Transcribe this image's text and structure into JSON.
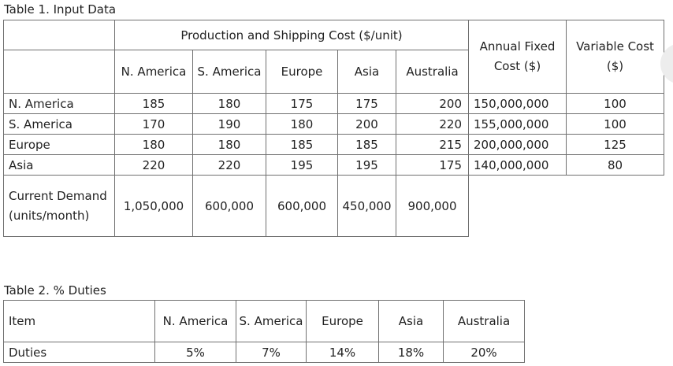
{
  "table1": {
    "caption": "Table 1. Input Data",
    "group_header": "Production and Shipping Cost ($/unit)",
    "annual_fixed_header": "Annual Fixed Cost ($)",
    "variable_header": "Variable Cost ($)",
    "region_headers": [
      "N. America",
      "S. America",
      "Europe",
      "Asia",
      "Australia"
    ],
    "rows": [
      {
        "label": "N. America",
        "costs": [
          "185",
          "180",
          "175",
          "175",
          "200"
        ],
        "fixed": "150,000,000",
        "variable": "100"
      },
      {
        "label": "S. America",
        "costs": [
          "170",
          "190",
          "180",
          "200",
          "220"
        ],
        "fixed": "155,000,000",
        "variable": "100"
      },
      {
        "label": "Europe",
        "costs": [
          "180",
          "180",
          "185",
          "185",
          "215"
        ],
        "fixed": "200,000,000",
        "variable": "125"
      },
      {
        "label": "Asia",
        "costs": [
          "220",
          "220",
          "195",
          "195",
          "175"
        ],
        "fixed": "140,000,000",
        "variable": "80"
      }
    ],
    "demand_label": "Current Demand (units/month)",
    "demand": [
      "1,050,000",
      "600,000",
      "600,000",
      "450,000",
      "900,000"
    ]
  },
  "table2": {
    "caption": "Table 2. % Duties",
    "item_header": "Item",
    "region_headers": [
      "N. America",
      "S. America",
      "Europe",
      "Asia",
      "Australia"
    ],
    "row_label": "Duties",
    "values": [
      "5%",
      "7%",
      "14%",
      "18%",
      "20%"
    ]
  }
}
